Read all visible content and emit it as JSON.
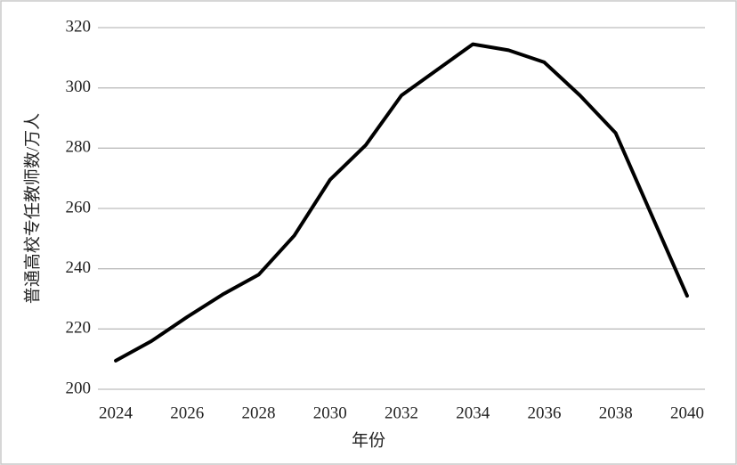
{
  "chart_data": {
    "type": "line",
    "x_label": "年份",
    "y_label": "普通高校专任教师数/万人",
    "x": [
      2024,
      2025,
      2026,
      2027,
      2028,
      2029,
      2030,
      2031,
      2032,
      2033,
      2034,
      2035,
      2036,
      2037,
      2038,
      2039,
      2040
    ],
    "values": [
      209.5,
      216,
      224,
      231.5,
      238,
      251,
      269.5,
      281,
      297.5,
      306,
      314.5,
      312.5,
      308.5,
      297.5,
      285,
      258,
      231
    ],
    "color": "#000000",
    "xlim": [
      2023.5,
      2040.5
    ],
    "xticks": [
      2024,
      2026,
      2028,
      2030,
      2032,
      2034,
      2036,
      2038,
      2040
    ],
    "ylim": [
      200,
      320
    ],
    "yticks": [
      200,
      220,
      240,
      260,
      280,
      300,
      320
    ],
    "grid": true
  }
}
